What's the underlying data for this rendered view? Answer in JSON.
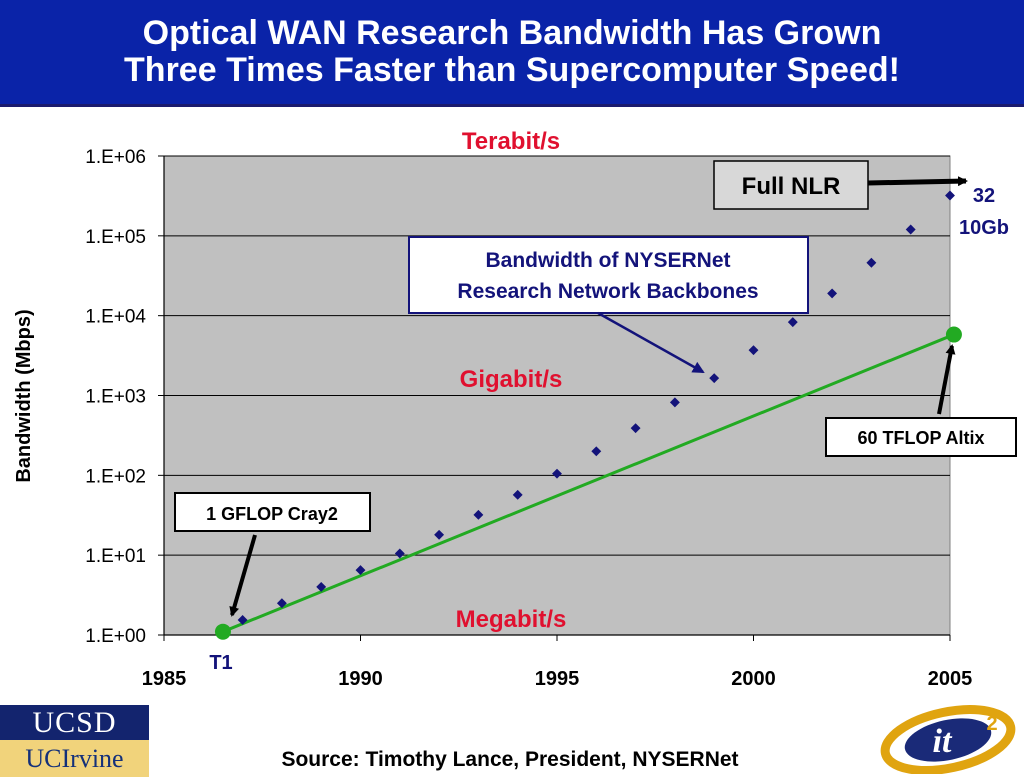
{
  "title": {
    "line1": "Optical WAN Research Bandwidth Has Grown",
    "line2": "Three Times Faster than Supercomputer Speed!"
  },
  "chart_data": {
    "type": "scatter",
    "ylabel": "Bandwidth (Mbps)",
    "xlim": [
      1985,
      2005
    ],
    "x_ticks": [
      "1985",
      "1990",
      "1995",
      "2000",
      "2005"
    ],
    "y_scale": "log",
    "y_ticks": [
      "1.E+00",
      "1.E+01",
      "1.E+02",
      "1.E+03",
      "1.E+04",
      "1.E+05",
      "1.E+06"
    ],
    "ylim": [
      1,
      1000000
    ],
    "grid": "horizontal",
    "series": [
      {
        "marker": "diamond",
        "color": "#13137a",
        "points": [
          [
            1987,
            1.544
          ],
          [
            1988,
            2.5
          ],
          [
            1989,
            4
          ],
          [
            1990,
            6.5
          ],
          [
            1991,
            10.5
          ],
          [
            1992,
            18
          ],
          [
            1993,
            32
          ],
          [
            1994,
            57
          ],
          [
            1995,
            105
          ],
          [
            1996,
            200
          ],
          [
            1997,
            390
          ],
          [
            1998,
            820
          ],
          [
            1999,
            1650
          ],
          [
            2000,
            3700
          ],
          [
            2001,
            8300
          ],
          [
            2002,
            19000
          ],
          [
            2003,
            46000
          ],
          [
            2004,
            120000
          ],
          [
            2005,
            320000
          ]
        ]
      },
      {
        "marker": "line",
        "color": "#22aa22",
        "points": [
          [
            1986.5,
            1.1
          ],
          [
            2005.1,
            5800
          ]
        ]
      }
    ],
    "band_labels": {
      "terabit": "Terabit/s",
      "gigabit": "Gigabit/s",
      "megabit": "Megabit/s"
    },
    "annotations": {
      "full_nlr": "Full NLR",
      "nysernet_line1": "Bandwidth of NYSERNet",
      "nysernet_line2": "Research Network Backbones",
      "altix": "60 TFLOP Altix",
      "cray2": "1 GFLOP Cray2",
      "t1": "T1",
      "nlr_value_line1": "32",
      "nlr_value_line2": "10Gb"
    },
    "colors": {
      "plot_bg": "#c0c0c0",
      "band_label": "#e0102f",
      "annotation_blue": "#13137a",
      "trend": "#22aa22"
    }
  },
  "footer": {
    "source": "Source: Timothy Lance, President, NYSERNet",
    "ucsd": "UCSD",
    "uci": "UCIrvine",
    "it2": "it",
    "it2_sup": "2"
  }
}
